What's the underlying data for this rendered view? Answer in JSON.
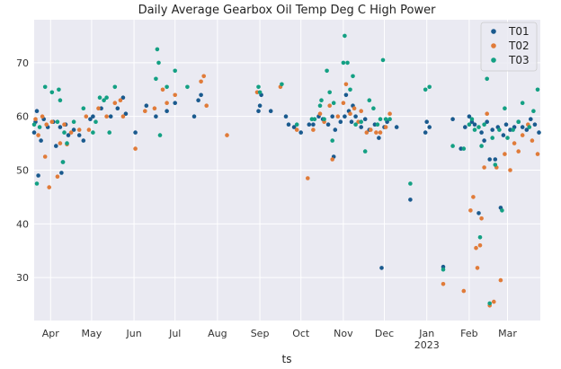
{
  "chart_data": {
    "type": "scatter",
    "title": "Daily Average Gearbox Oil Temp Deg C High Power",
    "xlabel": "ts",
    "ylabel": "",
    "x_range": [
      "2022-03-20",
      "2023-03-25"
    ],
    "ylim": [
      22,
      78
    ],
    "y_ticks": [
      30,
      40,
      50,
      60,
      70
    ],
    "x_ticks": [
      {
        "date": "2022-04-01",
        "label": "Apr",
        "sub": ""
      },
      {
        "date": "2022-05-01",
        "label": "May",
        "sub": ""
      },
      {
        "date": "2022-06-01",
        "label": "Jun",
        "sub": ""
      },
      {
        "date": "2022-07-01",
        "label": "Jul",
        "sub": ""
      },
      {
        "date": "2022-08-01",
        "label": "Aug",
        "sub": ""
      },
      {
        "date": "2022-09-01",
        "label": "Sep",
        "sub": ""
      },
      {
        "date": "2022-10-01",
        "label": "Oct",
        "sub": ""
      },
      {
        "date": "2022-11-01",
        "label": "Nov",
        "sub": ""
      },
      {
        "date": "2022-12-01",
        "label": "Dec",
        "sub": ""
      },
      {
        "date": "2023-01-01",
        "label": "Jan",
        "sub": "2023"
      },
      {
        "date": "2023-02-01",
        "label": "Feb",
        "sub": ""
      },
      {
        "date": "2023-03-01",
        "label": "Mar",
        "sub": ""
      }
    ],
    "grid": true,
    "legend": "top-right",
    "plot_bg": "#eaeaf2",
    "series": [
      {
        "name": "T01",
        "color": "#1a5a8e",
        "points": [
          [
            "2022-03-20",
            57.0
          ],
          [
            "2022-03-21",
            59.0
          ],
          [
            "2022-03-22",
            61.0
          ],
          [
            "2022-03-23",
            49.0
          ],
          [
            "2022-03-25",
            55.5
          ],
          [
            "2022-03-27",
            59.5
          ],
          [
            "2022-03-30",
            58.0
          ],
          [
            "2022-04-03",
            59.0
          ],
          [
            "2022-04-05",
            54.5
          ],
          [
            "2022-04-08",
            58.0
          ],
          [
            "2022-04-09",
            49.5
          ],
          [
            "2022-04-10",
            51.5
          ],
          [
            "2022-04-12",
            58.5
          ],
          [
            "2022-04-14",
            56.5
          ],
          [
            "2022-04-18",
            57.5
          ],
          [
            "2022-04-22",
            56.5
          ],
          [
            "2022-04-25",
            55.5
          ],
          [
            "2022-04-30",
            59.5
          ],
          [
            "2022-05-02",
            60.0
          ],
          [
            "2022-05-08",
            61.5
          ],
          [
            "2022-05-15",
            60.0
          ],
          [
            "2022-05-20",
            61.5
          ],
          [
            "2022-05-24",
            63.5
          ],
          [
            "2022-05-26",
            60.5
          ],
          [
            "2022-06-02",
            57.0
          ],
          [
            "2022-06-10",
            62.0
          ],
          [
            "2022-06-17",
            60.0
          ],
          [
            "2022-06-25",
            61.0
          ],
          [
            "2022-07-01",
            62.5
          ],
          [
            "2022-07-15",
            60.0
          ],
          [
            "2022-07-18",
            63.0
          ],
          [
            "2022-07-20",
            64.0
          ],
          [
            "2022-08-31",
            61.0
          ],
          [
            "2022-09-01",
            62.0
          ],
          [
            "2022-09-02",
            64.0
          ],
          [
            "2022-09-09",
            61.0
          ],
          [
            "2022-09-20",
            60.0
          ],
          [
            "2022-09-22",
            58.5
          ],
          [
            "2022-09-26",
            58.0
          ],
          [
            "2022-10-01",
            57.0
          ],
          [
            "2022-10-07",
            58.5
          ],
          [
            "2022-10-10",
            58.5
          ],
          [
            "2022-10-14",
            60.0
          ],
          [
            "2022-10-17",
            59.5
          ],
          [
            "2022-10-21",
            58.5
          ],
          [
            "2022-10-24",
            60.0
          ],
          [
            "2022-10-25",
            52.5
          ],
          [
            "2022-10-26",
            57.5
          ],
          [
            "2022-10-30",
            59.0
          ],
          [
            "2022-11-02",
            60.0
          ],
          [
            "2022-11-03",
            64.0
          ],
          [
            "2022-11-05",
            61.0
          ],
          [
            "2022-11-07",
            59.0
          ],
          [
            "2022-11-08",
            62.0
          ],
          [
            "2022-11-10",
            60.0
          ],
          [
            "2022-11-14",
            58.0
          ],
          [
            "2022-11-17",
            59.5
          ],
          [
            "2022-11-20",
            57.5
          ],
          [
            "2022-11-24",
            58.5
          ],
          [
            "2022-11-27",
            56.0
          ],
          [
            "2022-11-29",
            31.8
          ],
          [
            "2022-12-01",
            58.0
          ],
          [
            "2022-12-03",
            59.0
          ],
          [
            "2022-12-10",
            58.0
          ],
          [
            "2022-12-20",
            44.5
          ],
          [
            "2022-12-31",
            57.0
          ],
          [
            "2023-01-01",
            59.0
          ],
          [
            "2023-01-03",
            58.0
          ],
          [
            "2023-01-13",
            32.0
          ],
          [
            "2023-01-20",
            59.5
          ],
          [
            "2023-01-26",
            54.0
          ],
          [
            "2023-01-29",
            58.0
          ],
          [
            "2023-02-01",
            60.0
          ],
          [
            "2023-02-03",
            59.0
          ],
          [
            "2023-02-05",
            58.5
          ],
          [
            "2023-02-08",
            42.0
          ],
          [
            "2023-02-10",
            57.0
          ],
          [
            "2023-02-12",
            55.5
          ],
          [
            "2023-02-14",
            59.0
          ],
          [
            "2023-02-16",
            52.0
          ],
          [
            "2023-02-18",
            57.5
          ],
          [
            "2023-02-20",
            52.0
          ],
          [
            "2023-02-22",
            58.0
          ],
          [
            "2023-02-24",
            43.0
          ],
          [
            "2023-02-26",
            56.5
          ],
          [
            "2023-02-28",
            58.5
          ],
          [
            "2023-03-03",
            57.5
          ],
          [
            "2023-03-06",
            58.0
          ],
          [
            "2023-03-09",
            59.0
          ],
          [
            "2023-03-12",
            58.0
          ],
          [
            "2023-03-15",
            57.5
          ],
          [
            "2023-03-18",
            59.5
          ],
          [
            "2023-03-21",
            58.5
          ],
          [
            "2023-03-24",
            57.0
          ]
        ]
      },
      {
        "name": "T02",
        "color": "#e07b39",
        "points": [
          [
            "2022-03-21",
            59.5
          ],
          [
            "2022-03-23",
            56.5
          ],
          [
            "2022-03-26",
            60.0
          ],
          [
            "2022-03-28",
            52.5
          ],
          [
            "2022-03-29",
            58.5
          ],
          [
            "2022-03-31",
            46.8
          ],
          [
            "2022-04-02",
            59.0
          ],
          [
            "2022-04-06",
            48.8
          ],
          [
            "2022-04-08",
            55.0
          ],
          [
            "2022-04-11",
            58.5
          ],
          [
            "2022-04-13",
            54.8
          ],
          [
            "2022-04-16",
            57.0
          ],
          [
            "2022-04-22",
            57.5
          ],
          [
            "2022-04-27",
            60.0
          ],
          [
            "2022-04-29",
            57.5
          ],
          [
            "2022-05-06",
            61.5
          ],
          [
            "2022-05-12",
            60.0
          ],
          [
            "2022-05-18",
            62.5
          ],
          [
            "2022-05-22",
            63.0
          ],
          [
            "2022-05-24",
            60.0
          ],
          [
            "2022-06-02",
            54.0
          ],
          [
            "2022-06-09",
            61.0
          ],
          [
            "2022-06-16",
            61.5
          ],
          [
            "2022-06-22",
            65.0
          ],
          [
            "2022-06-25",
            62.5
          ],
          [
            "2022-07-01",
            64.0
          ],
          [
            "2022-07-20",
            66.5
          ],
          [
            "2022-07-22",
            67.5
          ],
          [
            "2022-07-24",
            62.0
          ],
          [
            "2022-08-08",
            56.5
          ],
          [
            "2022-08-30",
            64.5
          ],
          [
            "2022-09-16",
            65.5
          ],
          [
            "2022-09-28",
            57.5
          ],
          [
            "2022-10-06",
            48.5
          ],
          [
            "2022-10-10",
            57.5
          ],
          [
            "2022-10-15",
            60.5
          ],
          [
            "2022-10-18",
            59.0
          ],
          [
            "2022-10-22",
            62.0
          ],
          [
            "2022-10-24",
            52.0
          ],
          [
            "2022-10-28",
            60.0
          ],
          [
            "2022-11-01",
            62.5
          ],
          [
            "2022-11-03",
            66.0
          ],
          [
            "2022-11-06",
            60.5
          ],
          [
            "2022-11-09",
            61.5
          ],
          [
            "2022-11-12",
            59.0
          ],
          [
            "2022-11-14",
            61.0
          ],
          [
            "2022-11-18",
            57.0
          ],
          [
            "2022-11-21",
            57.5
          ],
          [
            "2022-11-25",
            57.0
          ],
          [
            "2022-11-28",
            57.0
          ],
          [
            "2022-12-02",
            58.0
          ],
          [
            "2022-12-05",
            60.5
          ],
          [
            "2023-01-13",
            28.8
          ],
          [
            "2023-01-28",
            27.5
          ],
          [
            "2023-02-02",
            42.5
          ],
          [
            "2023-02-04",
            45.0
          ],
          [
            "2023-02-06",
            35.5
          ],
          [
            "2023-02-07",
            31.8
          ],
          [
            "2023-02-09",
            36.0
          ],
          [
            "2023-02-10",
            41.0
          ],
          [
            "2023-02-12",
            50.5
          ],
          [
            "2023-02-14",
            60.5
          ],
          [
            "2023-02-16",
            24.8
          ],
          [
            "2023-02-19",
            25.5
          ],
          [
            "2023-02-21",
            50.5
          ],
          [
            "2023-02-24",
            29.5
          ],
          [
            "2023-02-27",
            53.0
          ],
          [
            "2023-03-03",
            50.0
          ],
          [
            "2023-03-06",
            55.0
          ],
          [
            "2023-03-09",
            53.5
          ],
          [
            "2023-03-12",
            56.5
          ],
          [
            "2023-03-16",
            58.5
          ],
          [
            "2023-03-19",
            55.5
          ],
          [
            "2023-03-23",
            53.0
          ]
        ]
      },
      {
        "name": "T03",
        "color": "#13a083",
        "points": [
          [
            "2022-03-20",
            58.5
          ],
          [
            "2022-03-22",
            47.5
          ],
          [
            "2022-03-24",
            58.0
          ],
          [
            "2022-03-28",
            65.5
          ],
          [
            "2022-04-02",
            64.5
          ],
          [
            "2022-04-06",
            59.0
          ],
          [
            "2022-04-07",
            65.0
          ],
          [
            "2022-04-08",
            63.0
          ],
          [
            "2022-04-10",
            51.5
          ],
          [
            "2022-04-11",
            57.0
          ],
          [
            "2022-04-13",
            55.0
          ],
          [
            "2022-04-18",
            59.0
          ],
          [
            "2022-04-25",
            61.5
          ],
          [
            "2022-05-02",
            57.0
          ],
          [
            "2022-05-04",
            59.0
          ],
          [
            "2022-05-07",
            63.5
          ],
          [
            "2022-05-10",
            63.0
          ],
          [
            "2022-05-12",
            63.5
          ],
          [
            "2022-05-14",
            57.0
          ],
          [
            "2022-05-18",
            65.5
          ],
          [
            "2022-06-17",
            67.0
          ],
          [
            "2022-06-18",
            72.5
          ],
          [
            "2022-06-19",
            70.0
          ],
          [
            "2022-06-20",
            56.5
          ],
          [
            "2022-06-25",
            65.5
          ],
          [
            "2022-07-01",
            68.5
          ],
          [
            "2022-07-10",
            65.5
          ],
          [
            "2022-08-31",
            65.5
          ],
          [
            "2022-09-01",
            64.5
          ],
          [
            "2022-09-17",
            66.0
          ],
          [
            "2022-09-28",
            58.5
          ],
          [
            "2022-10-09",
            59.5
          ],
          [
            "2022-10-11",
            59.5
          ],
          [
            "2022-10-15",
            62.0
          ],
          [
            "2022-10-16",
            63.0
          ],
          [
            "2022-10-18",
            59.5
          ],
          [
            "2022-10-20",
            68.5
          ],
          [
            "2022-10-22",
            64.5
          ],
          [
            "2022-10-24",
            55.5
          ],
          [
            "2022-10-25",
            62.5
          ],
          [
            "2022-11-01",
            70.0
          ],
          [
            "2022-11-02",
            75.0
          ],
          [
            "2022-11-04",
            70.0
          ],
          [
            "2022-11-06",
            65.0
          ],
          [
            "2022-11-08",
            67.5
          ],
          [
            "2022-11-10",
            58.5
          ],
          [
            "2022-11-14",
            59.0
          ],
          [
            "2022-11-17",
            53.5
          ],
          [
            "2022-11-20",
            63.0
          ],
          [
            "2022-11-23",
            61.5
          ],
          [
            "2022-11-26",
            58.5
          ],
          [
            "2022-11-28",
            59.5
          ],
          [
            "2022-11-30",
            70.5
          ],
          [
            "2022-12-02",
            59.5
          ],
          [
            "2022-12-05",
            59.5
          ],
          [
            "2022-12-20",
            47.5
          ],
          [
            "2022-12-31",
            65.0
          ],
          [
            "2023-01-03",
            65.5
          ],
          [
            "2023-01-13",
            31.5
          ],
          [
            "2023-01-20",
            54.5
          ],
          [
            "2023-01-28",
            54.0
          ],
          [
            "2023-02-01",
            58.5
          ],
          [
            "2023-02-03",
            59.5
          ],
          [
            "2023-02-05",
            57.5
          ],
          [
            "2023-02-08",
            58.0
          ],
          [
            "2023-02-09",
            37.5
          ],
          [
            "2023-02-10",
            54.5
          ],
          [
            "2023-02-12",
            58.5
          ],
          [
            "2023-02-14",
            67.0
          ],
          [
            "2023-02-16",
            25.2
          ],
          [
            "2023-02-18",
            56.0
          ],
          [
            "2023-02-20",
            51.0
          ],
          [
            "2023-02-23",
            57.5
          ],
          [
            "2023-02-25",
            42.5
          ],
          [
            "2023-02-27",
            61.5
          ],
          [
            "2023-03-01",
            56.0
          ],
          [
            "2023-03-05",
            57.5
          ],
          [
            "2023-03-09",
            59.0
          ],
          [
            "2023-03-12",
            62.5
          ],
          [
            "2023-03-17",
            58.0
          ],
          [
            "2023-03-20",
            61.0
          ],
          [
            "2023-03-23",
            65.0
          ]
        ]
      }
    ]
  }
}
